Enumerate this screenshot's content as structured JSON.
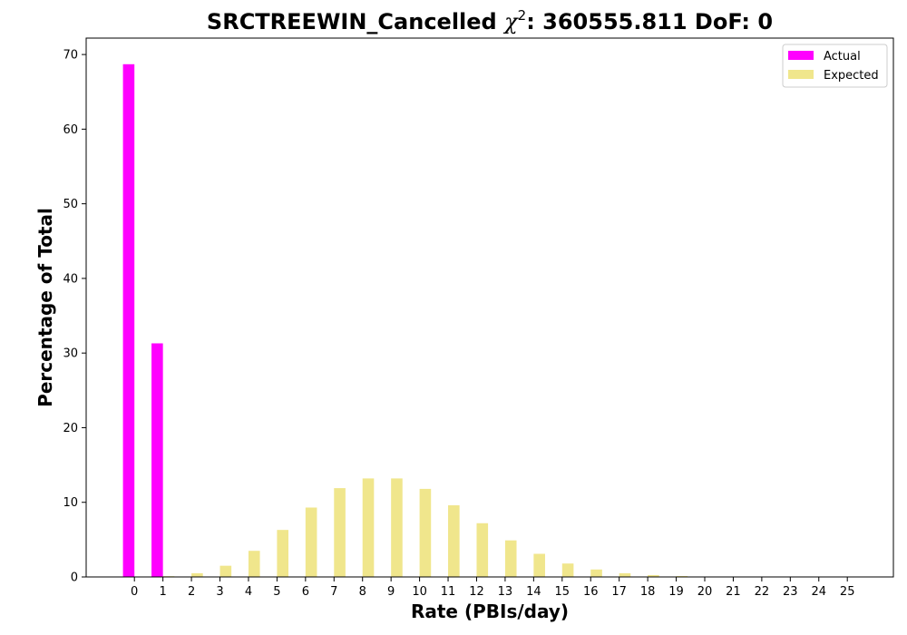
{
  "chart_data": {
    "type": "bar",
    "title_prefix": "SRCTREEWIN_Cancelled ",
    "title_chi": "χ",
    "title_sup": "2",
    "title_suffix": ": 360555.811 DoF: 0",
    "xlabel": "Rate (PBIs/day)",
    "ylabel": "Percentage of Total",
    "ylim": [
      0,
      72.2
    ],
    "yticks": [
      0,
      10,
      20,
      30,
      40,
      50,
      60,
      70
    ],
    "categories": [
      "0",
      "1",
      "2",
      "3",
      "4",
      "5",
      "6",
      "7",
      "8",
      "9",
      "10",
      "11",
      "12",
      "13",
      "14",
      "15",
      "16",
      "17",
      "18",
      "19",
      "20",
      "21",
      "22",
      "23",
      "24",
      "25"
    ],
    "legend_position": "top-right",
    "grid": false,
    "series": [
      {
        "name": "Actual",
        "color": "#ff00ff",
        "values": [
          68.7,
          31.3,
          0,
          0,
          0,
          0,
          0,
          0,
          0,
          0,
          0,
          0,
          0,
          0,
          0,
          0,
          0,
          0,
          0,
          0,
          0,
          0,
          0,
          0,
          0,
          0
        ]
      },
      {
        "name": "Expected",
        "color": "#f0e68c",
        "values": [
          0.0,
          0.1,
          0.5,
          1.5,
          3.5,
          6.3,
          9.3,
          11.9,
          13.2,
          13.2,
          11.8,
          9.6,
          7.2,
          4.9,
          3.1,
          1.8,
          1.0,
          0.5,
          0.25,
          0.12,
          0.05,
          0.02,
          0.01,
          0.0,
          0.0,
          0.0
        ]
      }
    ]
  }
}
